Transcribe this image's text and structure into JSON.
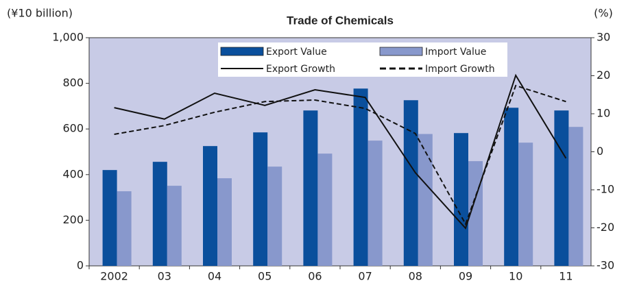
{
  "chart_data": {
    "type": "bar_line",
    "title": "Trade of Chemicals",
    "y_label": "(¥10 billion)",
    "y2_label": "(%)",
    "categories": [
      "2002",
      "03",
      "04",
      "05",
      "06",
      "07",
      "08",
      "09",
      "10",
      "11"
    ],
    "series": [
      {
        "name": "Export Value",
        "type": "bar",
        "color": "#0a4f9c",
        "values": [
          420,
          456,
          525,
          585,
          681,
          777,
          726,
          582,
          693,
          681
        ]
      },
      {
        "name": "Import Value",
        "type": "bar",
        "color": "#8898cc",
        "values": [
          327,
          351,
          384,
          435,
          492,
          549,
          578,
          459,
          540,
          609
        ]
      },
      {
        "name": "Export Growth",
        "type": "line",
        "axis": "y2",
        "color": "#111111",
        "dash": false,
        "values": [
          11.6,
          8.6,
          15.4,
          12.2,
          16.3,
          14.3,
          -5.5,
          -20.1,
          20.1,
          -1.7
        ]
      },
      {
        "name": "Import Growth",
        "type": "line",
        "axis": "y2",
        "color": "#111111",
        "dash": true,
        "values": [
          4.6,
          6.9,
          10.4,
          13.2,
          13.6,
          11.4,
          4.8,
          -19.0,
          17.4,
          13.2
        ]
      }
    ],
    "ylim": [
      0,
      1000
    ],
    "yticks": [
      0,
      200,
      400,
      600,
      800,
      {
        "value": 1000,
        "label": "1,000"
      }
    ],
    "y2lim": [
      -30,
      30
    ],
    "y2ticks": [
      -30,
      -20,
      -10,
      0,
      10,
      20,
      30
    ],
    "plot_background": "#c8cbe6"
  }
}
